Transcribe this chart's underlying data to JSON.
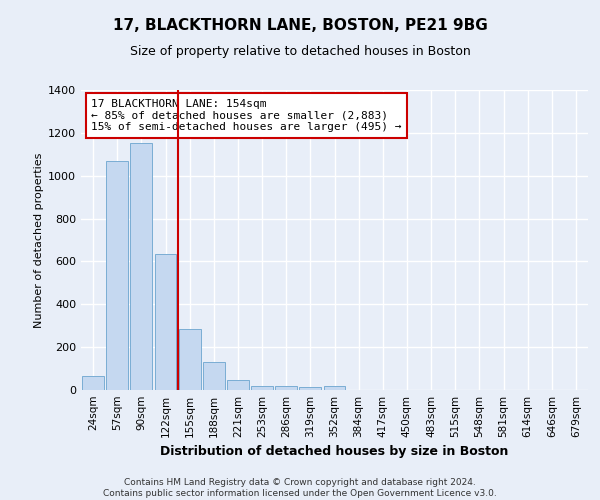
{
  "title1": "17, BLACKTHORN LANE, BOSTON, PE21 9BG",
  "title2": "Size of property relative to detached houses in Boston",
  "xlabel": "Distribution of detached houses by size in Boston",
  "ylabel": "Number of detached properties",
  "bar_labels": [
    "24sqm",
    "57sqm",
    "90sqm",
    "122sqm",
    "155sqm",
    "188sqm",
    "221sqm",
    "253sqm",
    "286sqm",
    "319sqm",
    "352sqm",
    "384sqm",
    "417sqm",
    "450sqm",
    "483sqm",
    "515sqm",
    "548sqm",
    "581sqm",
    "614sqm",
    "646sqm",
    "679sqm"
  ],
  "bar_values": [
    65,
    1070,
    1155,
    635,
    285,
    130,
    47,
    20,
    20,
    15,
    20,
    0,
    0,
    0,
    0,
    0,
    0,
    0,
    0,
    0,
    0
  ],
  "bar_color": "#c5d8f0",
  "bar_edgecolor": "#7aadd4",
  "property_line_color": "#cc0000",
  "annotation_text": "17 BLACKTHORN LANE: 154sqm\n← 85% of detached houses are smaller (2,883)\n15% of semi-detached houses are larger (495) →",
  "annotation_box_facecolor": "#ffffff",
  "annotation_box_edgecolor": "#cc0000",
  "ylim": [
    0,
    1400
  ],
  "yticks": [
    0,
    200,
    400,
    600,
    800,
    1000,
    1200,
    1400
  ],
  "footer": "Contains HM Land Registry data © Crown copyright and database right 2024.\nContains public sector information licensed under the Open Government Licence v3.0.",
  "bg_color": "#e8eef8",
  "plot_bg_color": "#e8eef8",
  "grid_color": "#ffffff",
  "title1_fontsize": 11,
  "title2_fontsize": 9,
  "xlabel_fontsize": 9,
  "ylabel_fontsize": 8
}
